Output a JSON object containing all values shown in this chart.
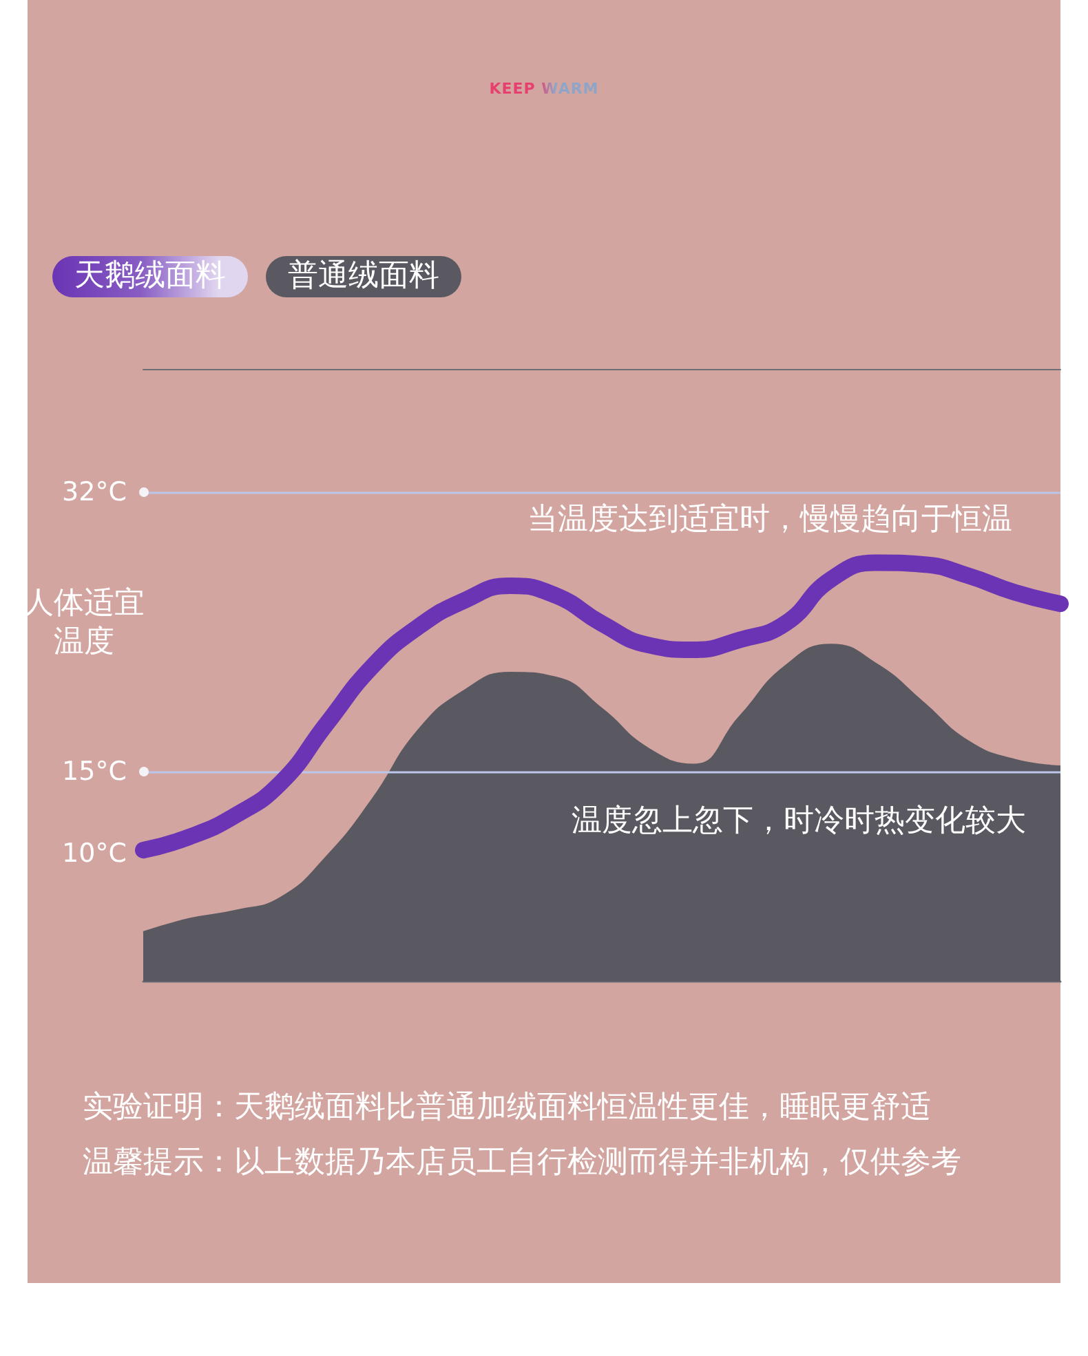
{
  "chart_data": {
    "type": "line",
    "title": "KEEP WARM",
    "categories": [
      null,
      null,
      null,
      null,
      null,
      null,
      null,
      null,
      null,
      null,
      null,
      null,
      null,
      null,
      null,
      null,
      null,
      null,
      null,
      null,
      null
    ],
    "series": [
      {
        "name": "天鹅绒面料",
        "type": "line",
        "color": "#6a34b4",
        "values": [
          10.2,
          11.0,
          12.3,
          14.3,
          17.9,
          21.4,
          23.8,
          25.4,
          26.3,
          25.7,
          24.0,
          22.7,
          22.4,
          23.0,
          24.0,
          26.7,
          27.7,
          27.6,
          26.9,
          25.9,
          25.2
        ]
      },
      {
        "name": "普通绒面料",
        "type": "area",
        "color": "#5a5961",
        "values": [
          5.2,
          6.0,
          6.5,
          7.3,
          9.8,
          13.3,
          17.5,
          19.9,
          21.0,
          20.7,
          18.8,
          16.4,
          15.4,
          18.3,
          21.4,
          22.7,
          21.5,
          19.2,
          16.8,
          15.7,
          15.3
        ]
      }
    ],
    "ylim": [
      2.2,
      39.5
    ],
    "yticks": [
      {
        "value": 10,
        "label": "10°C"
      },
      {
        "value": 15,
        "label": "15°C"
      },
      {
        "value": 32,
        "label": "32°C"
      }
    ],
    "ref_lines": [
      {
        "axis": "y",
        "value": 32,
        "color": "#bcc6ea"
      },
      {
        "axis": "y",
        "value": 15,
        "color": "#bcc6ea"
      }
    ],
    "annotations": [
      "当温度达到适宜时，慢慢趋向于恒温",
      "人体适宜温度",
      "温度忽上忽下，时冷时热变化较大",
      "实验证明：天鹅绒面料比普通加绒面料恒温性更佳，睡眠更舒适",
      "温馨提示：以上数据乃本店员工自行检测而得并非机构，仅供参考"
    ],
    "legend": "top left",
    "tick_labels": "y",
    "marker": "none",
    "line_style": "solid"
  }
}
